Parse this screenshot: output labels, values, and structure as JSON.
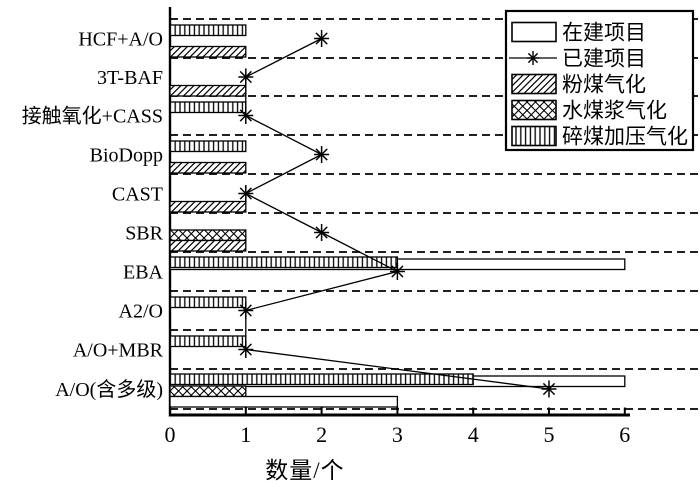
{
  "chart_data": {
    "type": "bar",
    "orientation": "horizontal-grouped-with-line-markers",
    "xlabel": "数量/个",
    "xlim": [
      0,
      6
    ],
    "xticks": [
      0,
      1,
      2,
      3,
      4,
      5,
      6
    ],
    "grid": "dashed horizontal category separators, extend to right edge",
    "legend_position": "top-right",
    "categories": [
      "HCF+A/O",
      "3T-BAF",
      "接触氧化+CASS",
      "BioDopp",
      "CAST",
      "SBR",
      "EBA",
      "A2/O",
      "A/O+MBR",
      "A/O(含多级)"
    ],
    "series": [
      {
        "name": "在建项目",
        "style": "open-white-bar",
        "values": [
          0,
          0,
          0,
          0,
          0,
          0,
          6,
          0,
          0,
          3
        ]
      },
      {
        "name": "已建项目",
        "style": "star-marker-line",
        "values": [
          2,
          1,
          1,
          2,
          1,
          2,
          3,
          1,
          1,
          5
        ]
      },
      {
        "name": "粉煤气化",
        "style": "diagonal-hatch-bar",
        "values": [
          1,
          1,
          0,
          1,
          1,
          1,
          0,
          0,
          0,
          0
        ]
      },
      {
        "name": "水煤浆气化",
        "style": "cross-hatch-bar",
        "values": [
          0,
          0,
          0,
          0,
          0,
          1,
          0,
          0,
          0,
          1
        ]
      },
      {
        "name": "碎煤加压气化",
        "style": "vertical-hatch-bar",
        "values": [
          1,
          0,
          1,
          1,
          0,
          0,
          3,
          1,
          1,
          4
        ]
      }
    ],
    "rows": [
      {
        "label": "HCF+A/O",
        "built": 2,
        "bars": [
          {
            "slot": "top",
            "pattern": "vlines",
            "value": 1
          },
          {
            "slot": "bottom",
            "pattern": "diag",
            "value": 1
          }
        ]
      },
      {
        "label": "3T-BAF",
        "built": 1,
        "bars": [
          {
            "slot": "bottom",
            "pattern": "diag",
            "value": 1
          }
        ]
      },
      {
        "label": "接触氧化+CASS",
        "built": 1,
        "bars": [
          {
            "slot": "top",
            "pattern": "vlines",
            "value": 1
          }
        ]
      },
      {
        "label": "BioDopp",
        "built": 2,
        "bars": [
          {
            "slot": "top",
            "pattern": "vlines",
            "value": 1
          },
          {
            "slot": "bottom",
            "pattern": "diag",
            "value": 1
          }
        ]
      },
      {
        "label": "CAST",
        "built": 1,
        "bars": [
          {
            "slot": "bottom",
            "pattern": "diag",
            "value": 1
          }
        ]
      },
      {
        "label": "SBR",
        "built": 2,
        "bars": [
          {
            "slot": "mid",
            "pattern": "cross",
            "value": 1
          },
          {
            "slot": "bottom",
            "pattern": "diag",
            "value": 1
          }
        ]
      },
      {
        "label": "EBA",
        "built": 3,
        "bars": [
          {
            "slot": "top",
            "pattern": "vlines",
            "value": 3,
            "white_to": 6
          }
        ]
      },
      {
        "label": "A2/O",
        "built": 1,
        "bars": [
          {
            "slot": "top",
            "pattern": "vlines",
            "value": 1
          }
        ]
      },
      {
        "label": "A/O+MBR",
        "built": 1,
        "bars": [
          {
            "slot": "top",
            "pattern": "vlines",
            "value": 1
          }
        ]
      },
      {
        "label": "A/O(含多级)",
        "built": 5,
        "bars": [
          {
            "slot": "top",
            "pattern": "vlines",
            "value": 4,
            "white_to": 6
          },
          {
            "slot": "mid",
            "pattern": "cross",
            "value": 1
          },
          {
            "slot": "bottom",
            "pattern": "white",
            "value": 3
          }
        ]
      }
    ],
    "legend": {
      "items": [
        {
          "label": "在建项目",
          "swatch": "white"
        },
        {
          "label": "已建项目",
          "swatch": "star-line"
        },
        {
          "label": "粉煤气化",
          "swatch": "diag"
        },
        {
          "label": "水煤浆气化",
          "swatch": "cross"
        },
        {
          "label": "碎煤加压气化",
          "swatch": "vlines"
        }
      ]
    },
    "colors": {
      "ink": "#000000",
      "paper": "#ffffff"
    }
  }
}
